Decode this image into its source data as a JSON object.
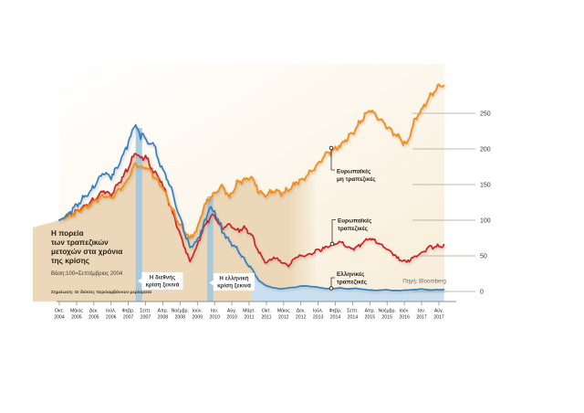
{
  "chart_data": {
    "type": "line",
    "title": "Η πορεία των τραπεζικών μετοχών στα χρόνια της κρίσης",
    "title_lines": [
      "Η πορεία",
      "των τραπεζικών",
      "μετοχών στα χρόνια",
      "της κρίσης"
    ],
    "base_note": "Βάση:100=Σεπτέμβριος 2004",
    "footnote": "Σημείωση: Οι δείκτες περιλαμβάνουν μερίσματα",
    "source": "Πηγή: Bloomberg",
    "x_unit": "months since Oct 2004",
    "x_tick_labels": [
      [
        "Οκτ.",
        "2004"
      ],
      [
        "Μάιος",
        "2005"
      ],
      [
        "Δεκ.",
        "2005"
      ],
      [
        "Ιούλ.",
        "2006"
      ],
      [
        "Φεβρ.",
        "2007"
      ],
      [
        "Σεπτ.",
        "2007"
      ],
      [
        "Απρ.",
        "2008"
      ],
      [
        "Νοέμβρ.",
        "2008"
      ],
      [
        "Ιούν.",
        "2009"
      ],
      [
        "Ιαν.",
        "2010"
      ],
      [
        "Αύγ.",
        "2010"
      ],
      [
        "Μάρτ.",
        "2011"
      ],
      [
        "Οκτ.",
        "2011"
      ],
      [
        "Μάιος",
        "2012"
      ],
      [
        "Δεκ.",
        "2012"
      ],
      [
        "Ιούλ.",
        "2013"
      ],
      [
        "Φεβρ.",
        "2014"
      ],
      [
        "Σεπτ.",
        "2014"
      ],
      [
        "Απρ.",
        "2015"
      ],
      [
        "Νοέμβρ.",
        "2015"
      ],
      [
        "Ιούν.",
        "2016"
      ],
      [
        "Ιαν.",
        "2017"
      ],
      [
        "Αύγ.",
        "2017"
      ]
    ],
    "y_ticks": [
      0,
      50,
      100,
      150,
      200,
      250
    ],
    "ylim": [
      0,
      300
    ],
    "grid": "right-side short segments",
    "legend_position": "inline callouts on chart",
    "series": [
      {
        "name": "Ευρωπαϊκές μη τραπεζικές",
        "color": "#f28e1e",
        "points": [
          [
            0,
            100
          ],
          [
            3,
            104
          ],
          [
            6,
            110
          ],
          [
            9,
            115
          ],
          [
            12,
            121
          ],
          [
            15,
            128
          ],
          [
            18,
            136
          ],
          [
            21,
            130
          ],
          [
            24,
            142
          ],
          [
            27,
            152
          ],
          [
            30,
            172
          ],
          [
            31,
            180
          ],
          [
            33,
            172
          ],
          [
            35,
            176
          ],
          [
            37,
            168
          ],
          [
            39,
            158
          ],
          [
            42,
            146
          ],
          [
            45,
            122
          ],
          [
            48,
            100
          ],
          [
            50,
            88
          ],
          [
            53,
            74
          ],
          [
            56,
            88
          ],
          [
            58,
            112
          ],
          [
            60,
            128
          ],
          [
            63,
            138
          ],
          [
            66,
            148
          ],
          [
            69,
            132
          ],
          [
            72,
            152
          ],
          [
            75,
            156
          ],
          [
            78,
            162
          ],
          [
            81,
            140
          ],
          [
            84,
            134
          ],
          [
            87,
            142
          ],
          [
            90,
            138
          ],
          [
            93,
            142
          ],
          [
            96,
            152
          ],
          [
            99,
            158
          ],
          [
            102,
            168
          ],
          [
            105,
            178
          ],
          [
            108,
            192
          ],
          [
            111,
            198
          ],
          [
            114,
            205
          ],
          [
            117,
            215
          ],
          [
            120,
            228
          ],
          [
            123,
            242
          ],
          [
            126,
            255
          ],
          [
            129,
            245
          ],
          [
            132,
            235
          ],
          [
            135,
            225
          ],
          [
            138,
            215
          ],
          [
            141,
            205
          ],
          [
            144,
            238
          ],
          [
            147,
            255
          ],
          [
            150,
            272
          ],
          [
            154,
            288
          ],
          [
            156,
            290
          ]
        ]
      },
      {
        "name": "Ευρωπαϊκές τραπεζικές",
        "color": "#cd2027",
        "points": [
          [
            0,
            100
          ],
          [
            3,
            104
          ],
          [
            6,
            110
          ],
          [
            9,
            117
          ],
          [
            12,
            124
          ],
          [
            15,
            132
          ],
          [
            18,
            142
          ],
          [
            21,
            135
          ],
          [
            24,
            152
          ],
          [
            27,
            168
          ],
          [
            30,
            188
          ],
          [
            31,
            196
          ],
          [
            33,
            185
          ],
          [
            35,
            190
          ],
          [
            37,
            175
          ],
          [
            39,
            165
          ],
          [
            42,
            150
          ],
          [
            45,
            120
          ],
          [
            48,
            90
          ],
          [
            50,
            70
          ],
          [
            53,
            42
          ],
          [
            56,
            65
          ],
          [
            58,
            85
          ],
          [
            60,
            98
          ],
          [
            62,
            108
          ],
          [
            63,
            105
          ],
          [
            66,
            88
          ],
          [
            69,
            95
          ],
          [
            72,
            85
          ],
          [
            75,
            90
          ],
          [
            78,
            80
          ],
          [
            81,
            55
          ],
          [
            84,
            40
          ],
          [
            87,
            48
          ],
          [
            90,
            42
          ],
          [
            93,
            36
          ],
          [
            96,
            48
          ],
          [
            99,
            50
          ],
          [
            102,
            52
          ],
          [
            105,
            58
          ],
          [
            108,
            62
          ],
          [
            111,
            66
          ],
          [
            114,
            70
          ],
          [
            117,
            62
          ],
          [
            120,
            60
          ],
          [
            123,
            68
          ],
          [
            126,
            75
          ],
          [
            129,
            70
          ],
          [
            132,
            62
          ],
          [
            135,
            54
          ],
          [
            138,
            44
          ],
          [
            141,
            42
          ],
          [
            144,
            48
          ],
          [
            147,
            54
          ],
          [
            150,
            62
          ],
          [
            154,
            64
          ],
          [
            156,
            64
          ]
        ]
      },
      {
        "name": "Ελληνικές τραπεζικές",
        "color": "#2f80c4",
        "points": [
          [
            0,
            100
          ],
          [
            3,
            106
          ],
          [
            6,
            118
          ],
          [
            9,
            128
          ],
          [
            12,
            138
          ],
          [
            15,
            152
          ],
          [
            18,
            168
          ],
          [
            21,
            160
          ],
          [
            24,
            178
          ],
          [
            27,
            200
          ],
          [
            30,
            228
          ],
          [
            31,
            236
          ],
          [
            33,
            215
          ],
          [
            34,
            225
          ],
          [
            36,
            205
          ],
          [
            38,
            212
          ],
          [
            40,
            185
          ],
          [
            42,
            172
          ],
          [
            44,
            155
          ],
          [
            46,
            140
          ],
          [
            48,
            112
          ],
          [
            50,
            95
          ],
          [
            51,
            80
          ],
          [
            53,
            62
          ],
          [
            56,
            72
          ],
          [
            58,
            88
          ],
          [
            60,
            108
          ],
          [
            61,
            118
          ],
          [
            63,
            112
          ],
          [
            66,
            85
          ],
          [
            69,
            70
          ],
          [
            72,
            60
          ],
          [
            75,
            45
          ],
          [
            78,
            32
          ],
          [
            81,
            15
          ],
          [
            84,
            8
          ],
          [
            87,
            5
          ],
          [
            90,
            3.5
          ],
          [
            93,
            5
          ],
          [
            96,
            6
          ],
          [
            99,
            8
          ],
          [
            102,
            7
          ],
          [
            105,
            6
          ],
          [
            108,
            4
          ],
          [
            111,
            4
          ],
          [
            114,
            5
          ],
          [
            117,
            3.5
          ],
          [
            120,
            4.5
          ],
          [
            123,
            3
          ],
          [
            126,
            2
          ],
          [
            129,
            1.5
          ],
          [
            132,
            2.5
          ],
          [
            135,
            1.5
          ],
          [
            138,
            1.2
          ],
          [
            141,
            2
          ],
          [
            144,
            2.5
          ],
          [
            147,
            3.5
          ],
          [
            150,
            2
          ],
          [
            154,
            2.5
          ],
          [
            156,
            2.5
          ]
        ]
      }
    ],
    "events": [
      {
        "label_lines": [
          "Η διεθνής",
          "κρίση ξεκινά"
        ],
        "start_month": 31,
        "end_month": 33.6
      },
      {
        "label_lines": [
          "Η ελληνική",
          "κρίση ξεκινά"
        ],
        "start_month": 60,
        "end_month": 62.4
      }
    ]
  },
  "legend": {
    "items": [
      {
        "line1": "Ευρωπαϊκές",
        "line2": "μη τραπεζικές"
      },
      {
        "line1": "Ευρωπαϊκές",
        "line2": "τραπεζικές"
      },
      {
        "line1": "Ελληνικές",
        "line2": "τραπεζικές"
      }
    ]
  },
  "colors": {
    "orange": "#f28e1e",
    "red": "#cd2027",
    "blue": "#2f80c4",
    "tan_fill": "#ecd8b8",
    "greek_fill": "#cadff0",
    "band": "#9cc6e0",
    "plot_bg_top": "#ffffff",
    "plot_bg_bottom": "#f7ecd8",
    "grid": "#a9a49c",
    "axis": "#8f8f8f"
  }
}
